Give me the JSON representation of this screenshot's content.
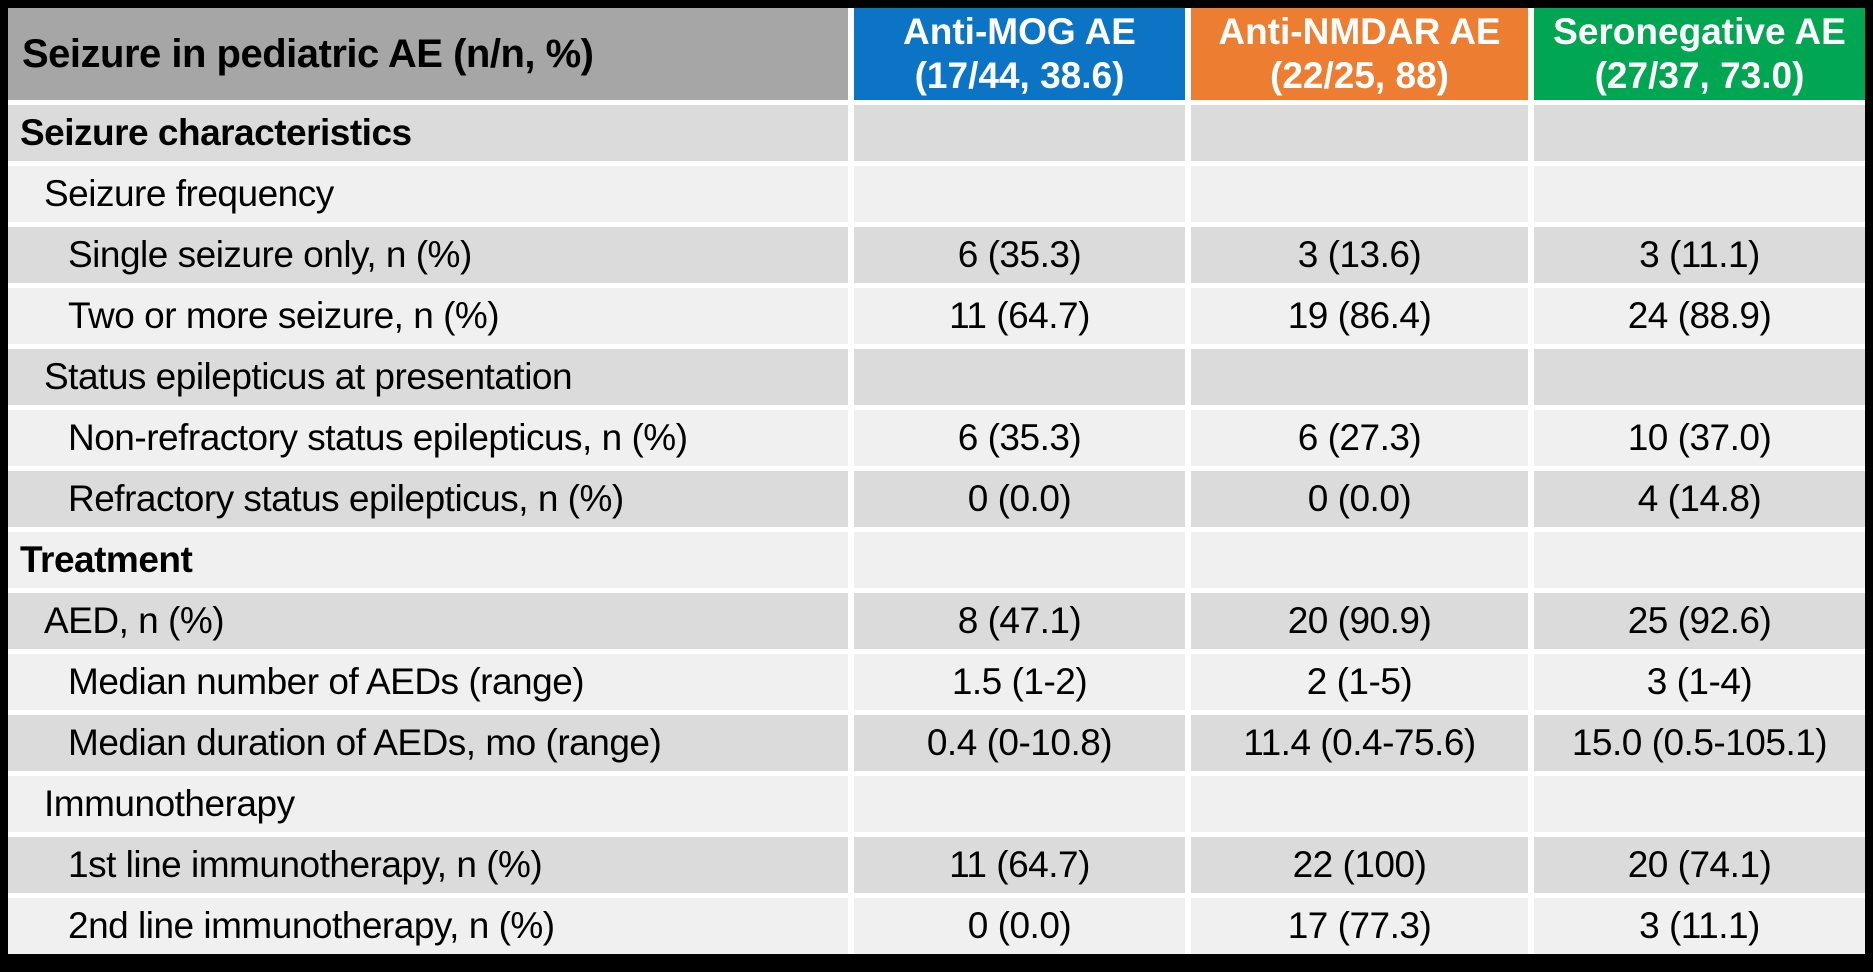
{
  "table": {
    "title_header": "Seizure in pediatric AE (n/n, %)",
    "header_bg": "#A6A6A6",
    "band_dark": "#DBDBDB",
    "band_light": "#F0F0F0",
    "columns": [
      {
        "label": "Anti-MOG AE",
        "sublabel": "(17/44, 38.6)",
        "color": "#0B74C4"
      },
      {
        "label": "Anti-NMDAR AE",
        "sublabel": "(22/25, 88)",
        "color": "#ED7D31"
      },
      {
        "label": "Seronegative AE",
        "sublabel": "(27/37, 73.0)",
        "color": "#00A651"
      }
    ],
    "rows": [
      {
        "label": "Seizure characteristics",
        "level": 0,
        "bold": true,
        "band": "dark",
        "values": [
          "",
          "",
          ""
        ]
      },
      {
        "label": "Seizure frequency",
        "level": 1,
        "bold": false,
        "band": "light",
        "values": [
          "",
          "",
          ""
        ]
      },
      {
        "label": "Single seizure only, n (%)",
        "level": 2,
        "bold": false,
        "band": "dark",
        "values": [
          "6 (35.3)",
          "3 (13.6)",
          "3 (11.1)"
        ]
      },
      {
        "label": "Two or more seizure, n (%)",
        "level": 2,
        "bold": false,
        "band": "light",
        "values": [
          "11 (64.7)",
          "19 (86.4)",
          "24 (88.9)"
        ]
      },
      {
        "label": "Status epilepticus at presentation",
        "level": 1,
        "bold": false,
        "band": "dark",
        "values": [
          "",
          "",
          ""
        ]
      },
      {
        "label": "Non-refractory status epilepticus, n (%)",
        "level": 2,
        "bold": false,
        "band": "light",
        "values": [
          "6 (35.3)",
          "6 (27.3)",
          "10 (37.0)"
        ]
      },
      {
        "label": "Refractory status epilepticus, n (%)",
        "level": 2,
        "bold": false,
        "band": "dark",
        "values": [
          "0 (0.0)",
          "0 (0.0)",
          "4 (14.8)"
        ]
      },
      {
        "label": "Treatment",
        "level": 0,
        "bold": true,
        "band": "light",
        "values": [
          "",
          "",
          ""
        ]
      },
      {
        "label": "AED, n (%)",
        "level": 1,
        "bold": false,
        "band": "dark",
        "values": [
          "8 (47.1)",
          "20 (90.9)",
          "25 (92.6)"
        ]
      },
      {
        "label": "Median number of AEDs (range)",
        "level": 2,
        "bold": false,
        "band": "light",
        "values": [
          "1.5 (1-2)",
          "2 (1-5)",
          "3 (1-4)"
        ]
      },
      {
        "label": "Median duration of AEDs, mo (range)",
        "level": 2,
        "bold": false,
        "band": "dark",
        "values": [
          "0.4 (0-10.8)",
          "11.4 (0.4-75.6)",
          "15.0 (0.5-105.1)"
        ]
      },
      {
        "label": "Immunotherapy",
        "level": 1,
        "bold": false,
        "band": "light",
        "values": [
          "",
          "",
          ""
        ]
      },
      {
        "label": "1st line immunotherapy, n (%)",
        "level": 2,
        "bold": false,
        "band": "dark",
        "values": [
          "11 (64.7)",
          "22 (100)",
          "20 (74.1)"
        ]
      },
      {
        "label": "2nd line immunotherapy, n (%)",
        "level": 2,
        "bold": false,
        "band": "light",
        "values": [
          "0 (0.0)",
          "17 (77.3)",
          "3 (11.1)"
        ]
      }
    ]
  }
}
